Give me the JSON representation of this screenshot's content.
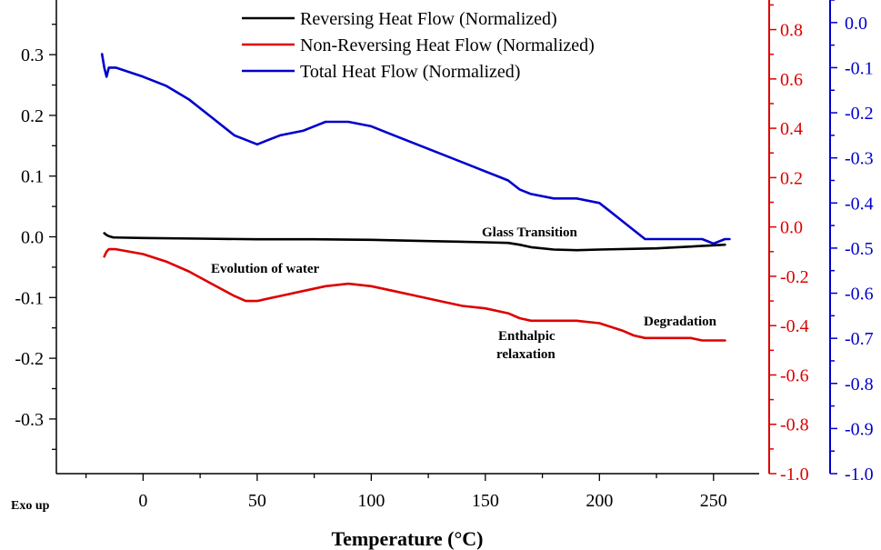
{
  "chart_data": {
    "type": "line",
    "xlabel": "Temperature (°C)",
    "corner_label": "Exo up",
    "xlim": [
      -38,
      270
    ],
    "x_ticks": [
      0,
      50,
      100,
      150,
      200,
      250
    ],
    "axes": {
      "left": {
        "ylim": [
          -0.39,
          0.39
        ],
        "ticks": [
          -0.3,
          -0.2,
          -0.1,
          0.0,
          0.1,
          0.2,
          0.3
        ],
        "tick_labels": [
          "-0.3",
          "-0.2",
          "-0.1",
          "0.0",
          "0.1",
          "0.2",
          "0.3"
        ],
        "color": "#000000"
      },
      "middle": {
        "ylim": [
          -1.0,
          0.92
        ],
        "ticks": [
          -1.0,
          -0.8,
          -0.6,
          -0.4,
          -0.2,
          0.0,
          0.2,
          0.4,
          0.6,
          0.8
        ],
        "tick_labels": [
          "-1.0",
          "-0.8",
          "-0.6",
          "-0.4",
          "-0.2",
          "0.0",
          "0.2",
          "0.4",
          "0.6",
          "0.8"
        ],
        "color": "#dd0000"
      },
      "right": {
        "ylim": [
          -1.0,
          0.05
        ],
        "ticks": [
          -1.0,
          -0.9,
          -0.8,
          -0.7,
          -0.6,
          -0.5,
          -0.4,
          -0.3,
          -0.2,
          -0.1,
          0.0
        ],
        "tick_labels": [
          "-1.0",
          "-0.9",
          "-0.8",
          "-0.7",
          "-0.6",
          "-0.5",
          "-0.4",
          "-0.3",
          "-0.2",
          "-0.1",
          "0.0"
        ],
        "color": "#0000cc"
      }
    },
    "legend_position": "top-center",
    "series": [
      {
        "name": "Reversing Heat Flow (Normalized)",
        "color": "#000000",
        "axis": "left",
        "x": [
          -17,
          -16,
          -15,
          -13,
          0,
          25,
          50,
          75,
          100,
          125,
          150,
          160,
          165,
          170,
          180,
          190,
          200,
          225,
          255
        ],
        "y": [
          0.006,
          0.003,
          0.001,
          -0.001,
          -0.002,
          -0.003,
          -0.004,
          -0.004,
          -0.005,
          -0.007,
          -0.009,
          -0.01,
          -0.013,
          -0.017,
          -0.021,
          -0.022,
          -0.021,
          -0.019,
          -0.013
        ]
      },
      {
        "name": "Non-Reversing Heat Flow (Normalized)",
        "color": "#dd0000",
        "axis": "middle",
        "x": [
          -17,
          -16,
          -15,
          -12,
          0,
          10,
          20,
          30,
          40,
          45,
          50,
          55,
          60,
          70,
          80,
          90,
          100,
          110,
          120,
          130,
          140,
          150,
          160,
          165,
          170,
          180,
          190,
          200,
          210,
          215,
          220,
          230,
          240,
          245,
          250,
          255
        ],
        "y": [
          -0.12,
          -0.1,
          -0.09,
          -0.09,
          -0.11,
          -0.14,
          -0.18,
          -0.23,
          -0.28,
          -0.3,
          -0.3,
          -0.29,
          -0.28,
          -0.26,
          -0.24,
          -0.23,
          -0.24,
          -0.26,
          -0.28,
          -0.3,
          -0.32,
          -0.33,
          -0.35,
          -0.37,
          -0.38,
          -0.38,
          -0.38,
          -0.39,
          -0.42,
          -0.44,
          -0.45,
          -0.45,
          -0.45,
          -0.46,
          -0.46,
          -0.46
        ]
      },
      {
        "name": "Total Heat Flow (Normalized)",
        "color": "#0000cc",
        "axis": "right",
        "x": [
          -18,
          -17,
          -16,
          -15,
          -12,
          0,
          10,
          20,
          30,
          40,
          45,
          50,
          55,
          60,
          70,
          80,
          90,
          100,
          110,
          120,
          130,
          140,
          150,
          155,
          160,
          165,
          170,
          180,
          190,
          200,
          205,
          210,
          215,
          220,
          225,
          230,
          240,
          245,
          250,
          255,
          257
        ],
        "y": [
          -0.07,
          -0.1,
          -0.12,
          -0.1,
          -0.1,
          -0.12,
          -0.14,
          -0.17,
          -0.21,
          -0.25,
          -0.26,
          -0.27,
          -0.26,
          -0.25,
          -0.24,
          -0.22,
          -0.22,
          -0.23,
          -0.25,
          -0.27,
          -0.29,
          -0.31,
          -0.33,
          -0.34,
          -0.35,
          -0.37,
          -0.38,
          -0.39,
          -0.39,
          -0.4,
          -0.42,
          -0.44,
          -0.46,
          -0.48,
          -0.48,
          -0.48,
          -0.48,
          -0.48,
          -0.49,
          -0.48,
          -0.48
        ]
      }
    ],
    "annotations": [
      {
        "id": "glass",
        "text": "Glass Transition"
      },
      {
        "id": "water",
        "text": "Evolution of water"
      },
      {
        "id": "enthalpic1",
        "text": "Enthalpic"
      },
      {
        "id": "enthalpic2",
        "text": "relaxation"
      },
      {
        "id": "degradation",
        "text": "Degradation"
      }
    ]
  }
}
